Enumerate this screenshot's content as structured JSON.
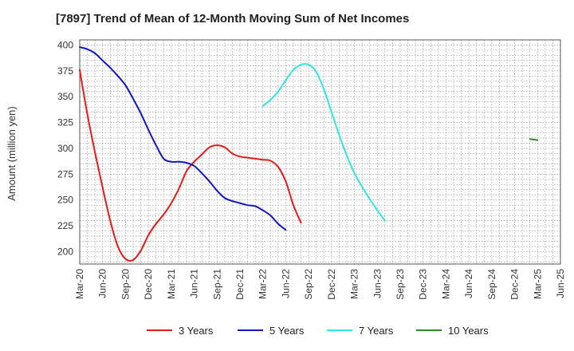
{
  "chart_data": {
    "type": "line",
    "title": "[7897]  Trend of Mean of 12-Month Moving Sum of Net Incomes",
    "ylabel": "Amount (million yen)",
    "xlabel": "",
    "ylim": [
      188,
      405
    ],
    "yticks": [
      200,
      225,
      250,
      275,
      300,
      325,
      350,
      375,
      400
    ],
    "xticks": [
      "Mar-20",
      "Jun-20",
      "Sep-20",
      "Dec-20",
      "Mar-21",
      "Jun-21",
      "Sep-21",
      "Dec-21",
      "Mar-22",
      "Jun-22",
      "Sep-22",
      "Dec-22",
      "Mar-23",
      "Jun-23",
      "Sep-23",
      "Dec-23",
      "Mar-24",
      "Jun-24",
      "Sep-24",
      "Dec-24",
      "Mar-25",
      "Jun-25"
    ],
    "grid": true,
    "legend_position": "bottom",
    "series": [
      {
        "name": "3 Years",
        "color": "#e8191a",
        "start": "Mar-20",
        "values": [
          376,
          333,
          296,
          262,
          230,
          205,
          193,
          192,
          201,
          216,
          227,
          236,
          247,
          261,
          278,
          287,
          294,
          301,
          303,
          301,
          295,
          292,
          291,
          290,
          289,
          288,
          282,
          268,
          245,
          228
        ]
      },
      {
        "name": "5 Years",
        "color": "#1414c8",
        "start": "Mar-20",
        "values": [
          398,
          396,
          392,
          385,
          378,
          370,
          361,
          348,
          334,
          318,
          303,
          290,
          287,
          287,
          286,
          283,
          276,
          268,
          259,
          252,
          249,
          247,
          245,
          244,
          240,
          235,
          227,
          221
        ]
      },
      {
        "name": "7 Years",
        "color": "#33e5e5",
        "start": "Mar-22",
        "values": [
          341,
          347,
          355,
          366,
          376,
          381,
          381,
          374,
          357,
          335,
          313,
          293,
          276,
          263,
          251,
          240,
          230
        ]
      },
      {
        "name": "10 Years",
        "color": "#2a8c2a",
        "start": "Feb-25",
        "values": [
          309,
          308
        ]
      }
    ]
  }
}
